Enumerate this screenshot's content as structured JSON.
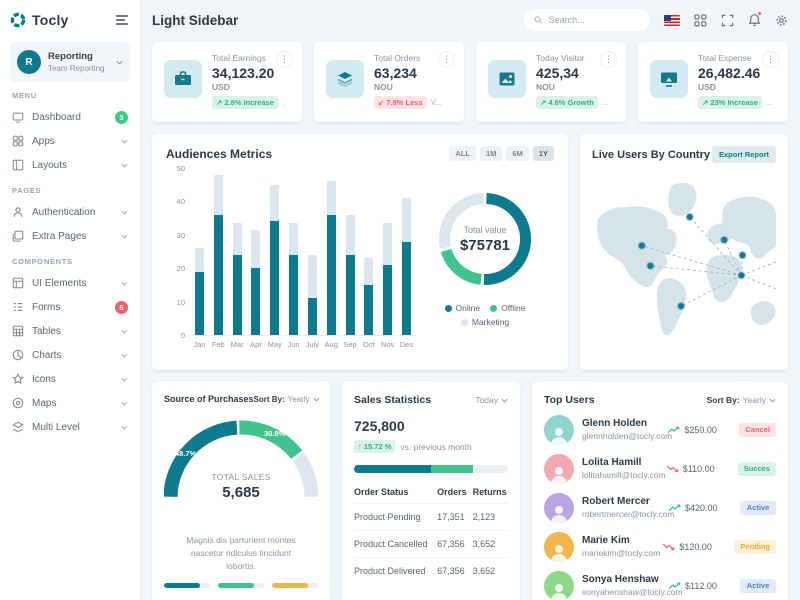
{
  "colors": {
    "primary": "#0e7a8e",
    "green": "#41c48c",
    "yellow": "#f1b44c",
    "light": "#dbe7ee",
    "muted": "#8a94a6"
  },
  "sidebar": {
    "brand": "Tocly",
    "team": {
      "initial": "R",
      "title": "Reporting",
      "subtitle": "Team Reporting"
    },
    "sections": [
      {
        "label": "MENU",
        "items": [
          {
            "label": "Dashboard",
            "icon": "dashboard",
            "badge": "3",
            "badge_color": "#3dc98d"
          },
          {
            "label": "Apps",
            "icon": "apps",
            "chevron": true
          },
          {
            "label": "Layouts",
            "icon": "layouts",
            "chevron": true
          }
        ]
      },
      {
        "label": "PAGES",
        "items": [
          {
            "label": "Authentication",
            "icon": "authentication",
            "chevron": true
          },
          {
            "label": "Extra Pages",
            "icon": "extra-pages",
            "chevron": true
          }
        ]
      },
      {
        "label": "COMPONENTS",
        "items": [
          {
            "label": "UI Elements",
            "icon": "ui-elements",
            "chevron": true
          },
          {
            "label": "Forms",
            "icon": "forms",
            "badge": "6",
            "badge_color": "#f0616b"
          },
          {
            "label": "Tables",
            "icon": "tables",
            "chevron": true
          },
          {
            "label": "Charts",
            "icon": "charts",
            "chevron": true
          },
          {
            "label": "Icons",
            "icon": "icons",
            "chevron": true
          },
          {
            "label": "Maps",
            "icon": "maps",
            "chevron": true
          },
          {
            "label": "Multi Level",
            "icon": "multi-level",
            "chevron": true
          }
        ]
      }
    ]
  },
  "header": {
    "title": "Light Sidebar",
    "search_placeholder": "Search..."
  },
  "stat_cards": [
    {
      "label": "Total Earnings",
      "value": "34,123.20",
      "unit": "USD",
      "badge": "2.8% Increase",
      "badge_dir": "up",
      "badge_color": "green",
      "suffix": ".",
      "icon": "briefcase"
    },
    {
      "label": "Total Orders",
      "value": "63,234",
      "unit": "NOU",
      "badge": "7.8% Less",
      "badge_dir": "down",
      "badge_color": "red",
      "suffix": "V...",
      "icon": "layers"
    },
    {
      "label": "Today Visitor",
      "value": "425,34",
      "unit": "NOU",
      "badge": "4.6% Growth",
      "badge_dir": "up",
      "badge_color": "green",
      "suffix": "...",
      "icon": "image"
    },
    {
      "label": "Total Expense",
      "value": "26,482.46",
      "unit": "USD",
      "badge": "23% Increase",
      "badge_dir": "up",
      "badge_color": "green",
      "suffix": "...",
      "icon": "monitor"
    }
  ],
  "audiences": {
    "title": "Audiences Metrics",
    "range_buttons": [
      "ALL",
      "1M",
      "6M",
      "1Y"
    ],
    "active_range": "1Y"
  },
  "chart_data": [
    {
      "type": "bar",
      "title": "Audiences Metrics",
      "categories": [
        "Jan",
        "Feb",
        "Mar",
        "Apr",
        "May",
        "Jun",
        "July",
        "Aug",
        "Sep",
        "Oct",
        "Nov",
        "Des"
      ],
      "series": [
        {
          "name": "Online",
          "values": [
            19,
            36,
            24,
            20,
            34,
            24,
            11,
            36,
            24,
            15,
            21,
            28
          ]
        },
        {
          "name": "Marketing",
          "values": [
            7,
            12,
            9.5,
            11.5,
            11,
            9.5,
            13,
            10,
            12,
            8,
            12.5,
            13
          ]
        }
      ],
      "ylim": [
        0,
        50
      ],
      "yticks": [
        0,
        10,
        20,
        30,
        40,
        50
      ],
      "legend_position": "none",
      "grid": false
    },
    {
      "type": "donut",
      "center_label": "Total value",
      "center_value": "$75781",
      "slices": [
        {
          "label": "Online",
          "value": 51,
          "color": "#0e7a8e"
        },
        {
          "label": "Offline",
          "value": 20,
          "color": "#41c48c"
        },
        {
          "label": "Marketing",
          "value": 29,
          "color": "#dbe7ee"
        }
      ]
    },
    {
      "type": "half-donut",
      "title": "Source of Purchases",
      "center_label": "TOTAL SALES",
      "center_value": "5,685",
      "slices": [
        {
          "label": "48.7%",
          "value": 48.7,
          "color": "#0e7a8e"
        },
        {
          "label": "30.8%",
          "value": 30.8,
          "color": "#41c48c"
        },
        {
          "label": "",
          "value": 20.5,
          "color": "#dde8ee"
        }
      ]
    }
  ],
  "live_users": {
    "title": "Live Users By Country",
    "export_label": "Export Report"
  },
  "purchases": {
    "title": "Source of Purchases",
    "sort_label": "Sort By:",
    "sort_value": "Yearly",
    "center_label": "TOTAL SALES",
    "center_value": "5,685",
    "seg1_label": "48.7%",
    "seg2_label": "30.8%",
    "description": "Magnis dis parturient montes nascetur ridiculus tincidunt lobortis.",
    "progress": [
      {
        "color": "#0e7a8e",
        "pct": 78
      },
      {
        "color": "#41c48c",
        "pct": 78
      },
      {
        "color": "#f1b44c",
        "pct": 78
      }
    ]
  },
  "sales_stats": {
    "title": "Sales Statistics",
    "period": "Today",
    "value": "725,800",
    "badge": "15.72 %",
    "note": "vs. previous month",
    "progress": [
      {
        "color": "#0e7a8e",
        "pct": 50
      },
      {
        "color": "#41c48c",
        "pct": 27
      }
    ],
    "table": {
      "headers": [
        "Order Status",
        "Orders",
        "Returns"
      ],
      "rows": [
        [
          "Product Pending",
          "17,351",
          "2,123"
        ],
        [
          "Product Cancelled",
          "67,356",
          "3,652"
        ],
        [
          "Product Delivered",
          "67,356",
          "3,652"
        ]
      ]
    }
  },
  "top_users": {
    "title": "Top Users",
    "sort_label": "Sort By:",
    "sort_value": "Yearly",
    "users": [
      {
        "name": "Glenn Holden",
        "email": "glennholden@tocly.com",
        "amount": "$250.00",
        "trend": "up",
        "status": "Cancel",
        "status_color": "red",
        "avatar_color": "#8fd4cf"
      },
      {
        "name": "Lolita Hamill",
        "email": "lolitahamill@tocly.com",
        "amount": "$110.00",
        "trend": "down",
        "status": "Succes",
        "status_color": "green",
        "avatar_color": "#f2a9b4"
      },
      {
        "name": "Robert Mercer",
        "email": "robertmercer@tocly.com",
        "amount": "$420.00",
        "trend": "up",
        "status": "Active",
        "status_color": "blue",
        "avatar_color": "#b9a4e3"
      },
      {
        "name": "Marie Kim",
        "email": "mariekim@tocly.com",
        "amount": "$120.00",
        "trend": "down",
        "status": "Pending",
        "status_color": "yellow",
        "avatar_color": "#f3b64e"
      },
      {
        "name": "Sonya Henshaw",
        "email": "sonyahenshaw@tocly.com",
        "amount": "$112.00",
        "trend": "up",
        "status": "Active",
        "status_color": "blue",
        "avatar_color": "#8fd98a"
      }
    ]
  }
}
